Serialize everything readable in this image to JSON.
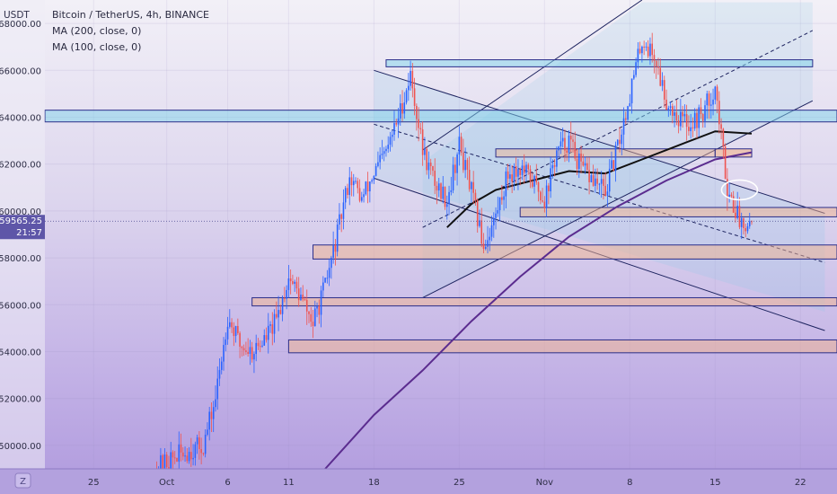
{
  "header": {
    "currency": "USDT",
    "symbol_line": "Bitcoin / TetherUS, 4h, BINANCE",
    "indicators": [
      "MA (200, close, 0)",
      "MA (100, close, 0)"
    ]
  },
  "price_tag": {
    "price": "59565.25",
    "countdown": "21:57"
  },
  "timezone_badge": "Z",
  "chart_data": {
    "type": "candlestick",
    "instrument": "Bitcoin / TetherUS",
    "timeframe": "4h",
    "exchange": "BINANCE",
    "y_axis": {
      "unit": "USDT",
      "range": [
        49000,
        69000
      ],
      "ticks": [
        {
          "value": 68000,
          "label": "68000.00"
        },
        {
          "value": 66000,
          "label": "66000.00"
        },
        {
          "value": 64000,
          "label": "64000.00"
        },
        {
          "value": 62000,
          "label": "62000.00"
        },
        {
          "value": 60000,
          "label": "60000.00"
        },
        {
          "value": 58000,
          "label": "58000.00"
        },
        {
          "value": 56000,
          "label": "56000.00"
        },
        {
          "value": 54000,
          "label": "54000.00"
        },
        {
          "value": 52000,
          "label": "52000.00"
        },
        {
          "value": 50000,
          "label": "50000.00"
        }
      ]
    },
    "x_axis": {
      "range": [
        "2021-09-21",
        "2021-11-25"
      ],
      "ticks": [
        {
          "date": "2021-09-25",
          "label": "25"
        },
        {
          "date": "2021-10-01",
          "label": "Oct"
        },
        {
          "date": "2021-10-06",
          "label": "6"
        },
        {
          "date": "2021-10-11",
          "label": "11"
        },
        {
          "date": "2021-10-18",
          "label": "18"
        },
        {
          "date": "2021-10-25",
          "label": "25"
        },
        {
          "date": "2021-11-01",
          "label": "Nov"
        },
        {
          "date": "2021-11-08",
          "label": "8"
        },
        {
          "date": "2021-11-15",
          "label": "15"
        },
        {
          "date": "2021-11-22",
          "label": "22"
        }
      ]
    },
    "last_price": 59565.25,
    "colors": {
      "up": "#2962ff",
      "down": "#ef5350",
      "ma_200": "#5b2c8f",
      "ma_100": "#111111"
    },
    "price_path": [
      [
        "2021-09-30",
        49000
      ],
      [
        "2021-10-02",
        49600
      ],
      [
        "2021-10-04",
        50000
      ],
      [
        "2021-10-05",
        52000
      ],
      [
        "2021-10-06",
        55500
      ],
      [
        "2021-10-07",
        54300
      ],
      [
        "2021-10-08",
        54000
      ],
      [
        "2021-10-09",
        54500
      ],
      [
        "2021-10-10",
        55300
      ],
      [
        "2021-10-11",
        57200
      ],
      [
        "2021-10-12",
        56300
      ],
      [
        "2021-10-13",
        55200
      ],
      [
        "2021-10-14",
        56800
      ],
      [
        "2021-10-15",
        59000
      ],
      [
        "2021-10-16",
        61500
      ],
      [
        "2021-10-17",
        60500
      ],
      [
        "2021-10-18",
        61600
      ],
      [
        "2021-10-19",
        62500
      ],
      [
        "2021-10-20",
        64000
      ],
      [
        "2021-10-21",
        65800
      ],
      [
        "2021-10-22",
        62600
      ],
      [
        "2021-10-23",
        61200
      ],
      [
        "2021-10-24",
        60500
      ],
      [
        "2021-10-25",
        62800
      ],
      [
        "2021-10-26",
        60800
      ],
      [
        "2021-10-27",
        58500
      ],
      [
        "2021-10-28",
        59800
      ],
      [
        "2021-10-29",
        61600
      ],
      [
        "2021-10-30",
        61800
      ],
      [
        "2021-10-31",
        61300
      ],
      [
        "2021-11-01",
        60500
      ],
      [
        "2021-11-02",
        62500
      ],
      [
        "2021-11-03",
        63000
      ],
      [
        "2021-11-04",
        61800
      ],
      [
        "2021-11-05",
        61300
      ],
      [
        "2021-11-06",
        60800
      ],
      [
        "2021-11-07",
        62700
      ],
      [
        "2021-11-08",
        65000
      ],
      [
        "2021-11-09",
        67300
      ],
      [
        "2021-11-10",
        66600
      ],
      [
        "2021-11-11",
        64700
      ],
      [
        "2021-11-12",
        64000
      ],
      [
        "2021-11-13",
        63700
      ],
      [
        "2021-11-14",
        64200
      ],
      [
        "2021-11-15",
        65300
      ],
      [
        "2021-11-16",
        61000
      ],
      [
        "2021-11-17",
        59600
      ],
      [
        "2021-11-18",
        59565.25
      ]
    ],
    "ma_100_path": [
      [
        "2021-10-24",
        59300
      ],
      [
        "2021-10-26",
        60300
      ],
      [
        "2021-10-28",
        60900
      ],
      [
        "2021-10-31",
        61300
      ],
      [
        "2021-11-03",
        61700
      ],
      [
        "2021-11-06",
        61600
      ],
      [
        "2021-11-09",
        62200
      ],
      [
        "2021-11-12",
        62800
      ],
      [
        "2021-11-15",
        63400
      ],
      [
        "2021-11-18",
        63300
      ]
    ],
    "ma_200_path": [
      [
        "2021-10-14",
        49000
      ],
      [
        "2021-10-18",
        51300
      ],
      [
        "2021-10-22",
        53200
      ],
      [
        "2021-10-26",
        55300
      ],
      [
        "2021-10-30",
        57200
      ],
      [
        "2021-11-03",
        58900
      ],
      [
        "2021-11-07",
        60200
      ],
      [
        "2021-11-11",
        61300
      ],
      [
        "2021-11-15",
        62200
      ],
      [
        "2021-11-18",
        62500
      ]
    ]
  }
}
